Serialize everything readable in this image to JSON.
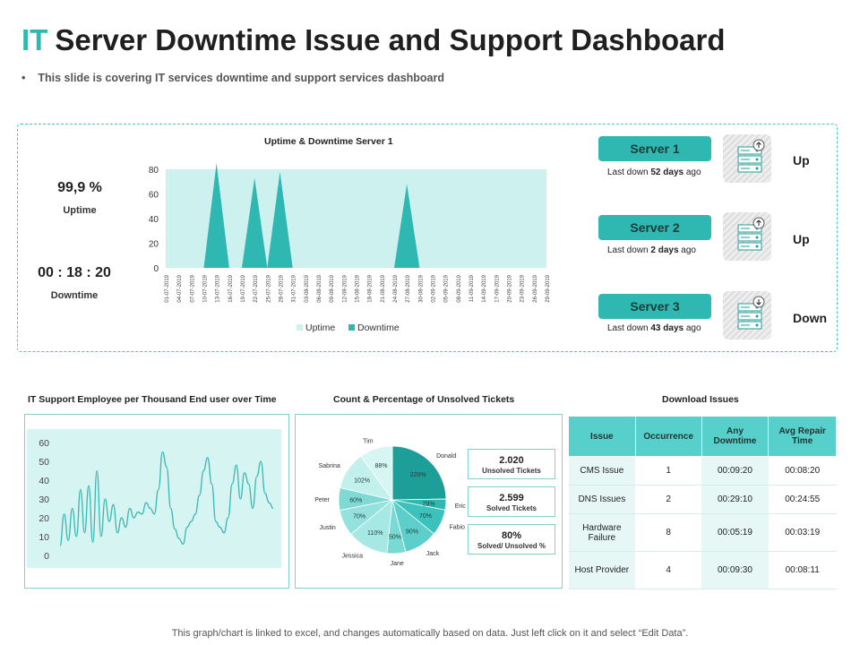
{
  "header": {
    "title_accent": "IT",
    "title_rest": "Server Downtime Issue and Support Dashboard",
    "subtitle": "This slide is covering IT services downtime and support services dashboard",
    "bullet": "•"
  },
  "kpis": {
    "uptime_value": "99,9 %",
    "uptime_label": "Uptime",
    "downtime_value": "00 : 18 : 20",
    "downtime_label": "Downtime"
  },
  "servers": [
    {
      "name": "Server 1",
      "last_prefix": "Last down ",
      "last_value": "52 days",
      "last_suffix": " ago",
      "status": "Up",
      "icon": "server-up-icon"
    },
    {
      "name": "Server 2",
      "last_prefix": "Last down ",
      "last_value": "2 days",
      "last_suffix": " ago",
      "status": "Up",
      "icon": "server-up-icon"
    },
    {
      "name": "Server 3",
      "last_prefix": "Last down ",
      "last_value": "43 days",
      "last_suffix": " ago",
      "status": "Down",
      "icon": "server-down-icon"
    }
  ],
  "sections": {
    "support_title": "IT Support Employee per Thousand End user over Time",
    "tickets_title": "Count & Percentage  of Unsolved Tickets",
    "downloads_title": "Download Issues"
  },
  "ticket_stats": [
    {
      "value": "2.020",
      "label": "Unsolved Tickets"
    },
    {
      "value": "2.599",
      "label": "Solved Tickets"
    },
    {
      "value": "80%",
      "label": "Solved/ Unsolved %"
    }
  ],
  "download_issues": {
    "headers": [
      "Issue",
      "Occurrence",
      "Any Downtime",
      "Avg Repair Time"
    ],
    "rows": [
      [
        "CMS Issue",
        "1",
        "00:09:20",
        "00:08:20"
      ],
      [
        "DNS Issues",
        "2",
        "00:29:10",
        "00:24:55"
      ],
      [
        "Hardware Failure",
        "8",
        "00:05:19",
        "00:03:19"
      ],
      [
        "Host Provider",
        "4",
        "00:09:30",
        "00:08:11"
      ]
    ]
  },
  "footer": "This graph/chart is linked to excel, and changes automatically based on data. Just left click on it and select “Edit Data”.",
  "colors": {
    "accent": "#2fb8b2",
    "light": "#cdf1ef",
    "dark": "#1e9e98"
  },
  "chart_data": [
    {
      "type": "area",
      "title": "Uptime & Downtime Server 1",
      "ylim": [
        0,
        80
      ],
      "yticks": [
        0,
        20,
        40,
        60,
        80
      ],
      "categories": [
        "01-07-2019",
        "04-07-2019",
        "07-07-2019",
        "10-07-2019",
        "13-07-2019",
        "16-07-2019",
        "19-07-2019",
        "22-07-2019",
        "25-07-2019",
        "28-07-2019",
        "31-07-2019",
        "03-08-2019",
        "06-08-2019",
        "09-08-2019",
        "12-08-2019",
        "15-08-2019",
        "18-08-2019",
        "21-08-2019",
        "24-08-2019",
        "27-08-2019",
        "30-08-2019",
        "02-09-2019",
        "05-09-2019",
        "08-09-2019",
        "11-09-2019",
        "14-09-2019",
        "17-09-2019",
        "20-09-2019",
        "23-09-2019",
        "26-09-2019",
        "29-09-2019"
      ],
      "series": [
        {
          "name": "Uptime",
          "values": [
            80,
            80,
            80,
            80,
            80,
            80,
            80,
            80,
            80,
            80,
            80,
            80,
            80,
            80,
            80,
            80,
            80,
            80,
            80,
            80,
            80,
            80,
            80,
            80,
            80,
            80,
            80,
            80,
            80,
            80,
            80
          ]
        },
        {
          "name": "Downtime",
          "values": [
            0,
            0,
            0,
            0,
            85,
            0,
            0,
            73,
            0,
            78,
            0,
            0,
            0,
            0,
            0,
            0,
            0,
            0,
            0,
            68,
            0,
            0,
            0,
            0,
            0,
            0,
            0,
            0,
            0,
            0,
            0
          ]
        }
      ],
      "legend": "bottom"
    },
    {
      "type": "line",
      "title": "IT Support Employee per Thousand End user over Time",
      "ylim": [
        0,
        60
      ],
      "yticks": [
        0,
        10,
        20,
        30,
        40,
        50,
        60
      ],
      "values": [
        5,
        22,
        8,
        25,
        10,
        35,
        12,
        37,
        7,
        45,
        10,
        30,
        18,
        27,
        12,
        20,
        15,
        25,
        20,
        23,
        22,
        28,
        25,
        22,
        35,
        55,
        47,
        25,
        14,
        9,
        6,
        15,
        18,
        22,
        32,
        45,
        52,
        38,
        18,
        15,
        12,
        20,
        38,
        48,
        30,
        44,
        38,
        25,
        42,
        50,
        33,
        28,
        25
      ],
      "legend": "none"
    },
    {
      "type": "pie",
      "title": "Count & Percentage  of Unsolved Tickets",
      "slices": [
        {
          "name": "Donald",
          "value": 220,
          "label": "220%"
        },
        {
          "name": "Eric",
          "value": 29,
          "label": "29%"
        },
        {
          "name": "Fabio",
          "value": 70,
          "label": "70%"
        },
        {
          "name": "Jack",
          "value": 90,
          "label": "90%"
        },
        {
          "name": "Jane",
          "value": 50,
          "label": "50%"
        },
        {
          "name": "Jessica",
          "value": 110,
          "label": "110%"
        },
        {
          "name": "Justin",
          "value": 70,
          "label": "70%"
        },
        {
          "name": "Peter",
          "value": 60,
          "label": "60%"
        },
        {
          "name": "Sabrina",
          "value": 102,
          "label": "102%"
        },
        {
          "name": "Tim",
          "value": 88,
          "label": "88%"
        }
      ]
    }
  ]
}
